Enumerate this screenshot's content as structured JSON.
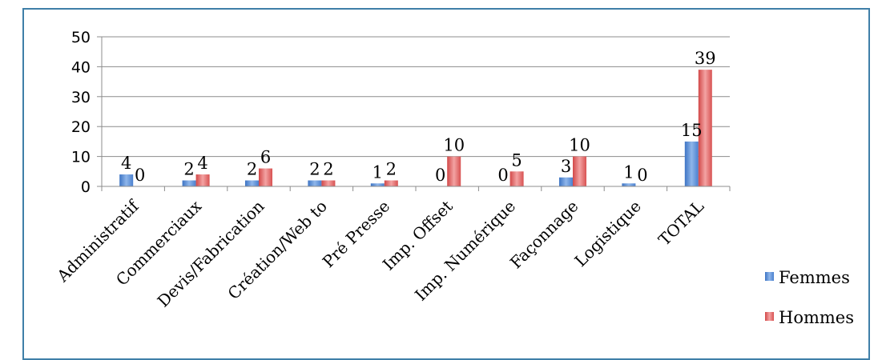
{
  "chart_data": {
    "type": "bar",
    "categories": [
      "Administratif",
      "Commerciaux",
      "Devis/Fabrication",
      "Création/Web to",
      "Pré Presse",
      "Imp. Offset",
      "Imp. Numérique",
      "Façonnage",
      "Logistique",
      "TOTAL"
    ],
    "series": [
      {
        "name": "Femmes",
        "values": [
          4,
          2,
          2,
          2,
          1,
          0,
          0,
          3,
          1,
          15
        ],
        "color": "#5b8fd6"
      },
      {
        "name": "Hommes",
        "values": [
          0,
          4,
          6,
          2,
          2,
          10,
          5,
          10,
          0,
          39
        ],
        "color": "#e05a5a"
      }
    ],
    "ylim": [
      0,
      50
    ],
    "yticks": [
      "0",
      "10",
      "20",
      "30",
      "40",
      "50"
    ],
    "grid": true,
    "legend": "bottom-right",
    "data_labels": true
  }
}
